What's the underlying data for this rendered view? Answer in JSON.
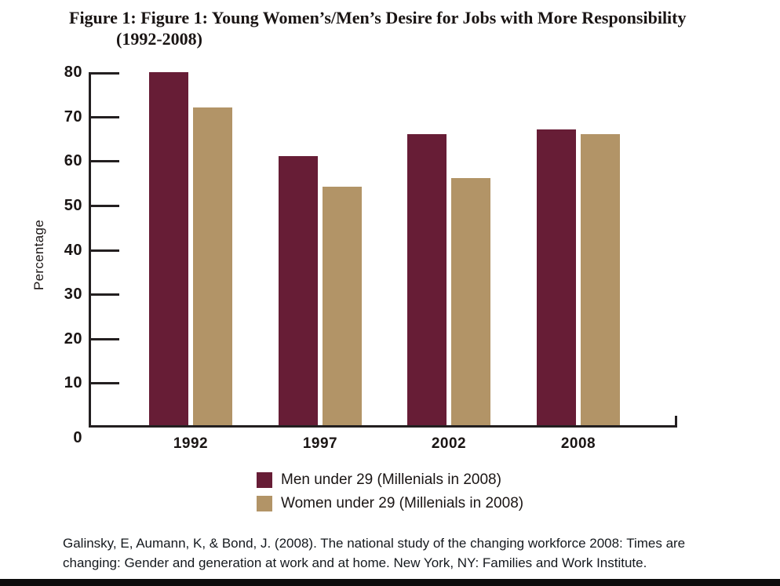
{
  "figure": {
    "title_line1": "Figure 1: Figure 1: Young Women’s/Men’s Desire for Jobs with More Responsibility",
    "title_line2": "(1992-2008)"
  },
  "chart_data": {
    "type": "bar",
    "title": "Figure 1: Figure 1: Young Women’s/Men’s Desire for Jobs with More Responsibility (1992-2008)",
    "categories": [
      "1992",
      "1997",
      "2002",
      "2008"
    ],
    "series": [
      {
        "name": "Men under 29 (Millenials in 2008)",
        "color": "#671d36",
        "values": [
          80,
          61,
          66,
          67
        ]
      },
      {
        "name": "Women under 29 (Millenials in 2008)",
        "color": "#b29467",
        "values": [
          72,
          54,
          56,
          66
        ]
      }
    ],
    "xlabel": "",
    "ylabel": "Percentage",
    "ylim": [
      0,
      80
    ],
    "yticks": [
      0,
      10,
      20,
      30,
      40,
      50,
      60,
      70,
      80
    ],
    "grid": false,
    "legend_position": "below-chart"
  },
  "citation": {
    "line1": "Galinsky, E, Aumann, K, & Bond, J. (2008). The national study of the changing workforce 2008: Times are",
    "line2": "changing: Gender and generation at work and at home. New York, NY: Families and Work Institute."
  },
  "colors": {
    "men_series": "#671d36",
    "women_series": "#b29467",
    "axis": "#231f20",
    "text": "#1a1514",
    "bottom_bar": "#0d0d0d"
  }
}
